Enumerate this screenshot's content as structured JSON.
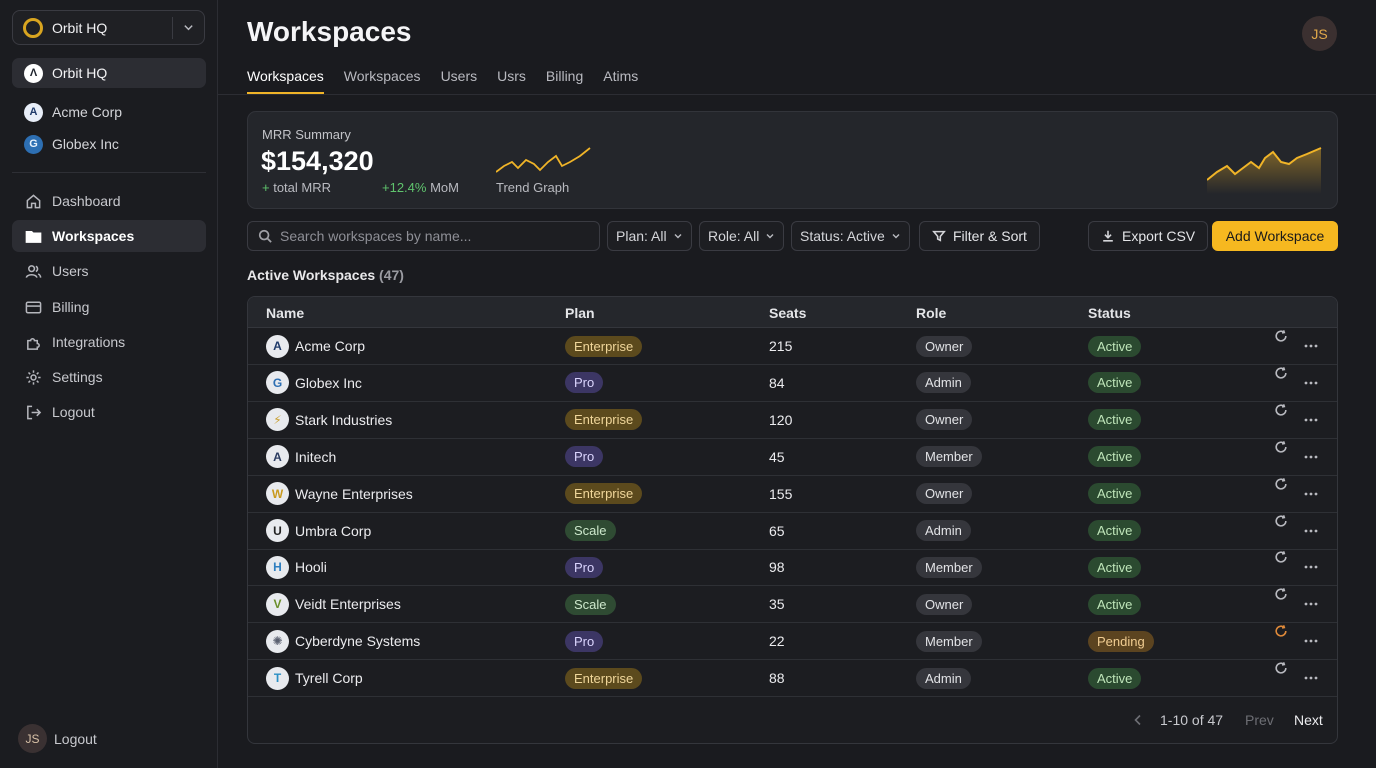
{
  "sidebar": {
    "switcher": {
      "name": "Orbit HQ"
    },
    "orgs": [
      {
        "label": "Orbit HQ",
        "logo_char": "Λ",
        "logo_bg": "#ffffff",
        "logo_fg": "#20252e"
      },
      {
        "label": "Acme Corp",
        "logo_char": "A",
        "logo_bg": "#e8eef8",
        "logo_fg": "#1f3a6a"
      },
      {
        "label": "Globex Inc",
        "logo_char": "G",
        "logo_bg": "#2d6fb3",
        "logo_fg": "#e8f1fb"
      }
    ],
    "nav": [
      {
        "label": "Dashboard",
        "icon": "home-icon"
      },
      {
        "label": "Workspaces",
        "icon": "folder-icon"
      },
      {
        "label": "Users",
        "icon": "users-icon"
      },
      {
        "label": "Billing",
        "icon": "credit-card-icon"
      },
      {
        "label": "Integrations",
        "icon": "puzzle-icon"
      },
      {
        "label": "Settings",
        "icon": "gear-icon"
      },
      {
        "label": "Logout",
        "icon": "logout-icon"
      }
    ],
    "user": {
      "initials": "JS",
      "label": "Logout"
    }
  },
  "header": {
    "title": "Workspaces",
    "avatar_initials": "JS",
    "tabs": [
      "Workspaces",
      "Workspaces",
      "Users",
      "Usrs",
      "Billing",
      "Atims"
    ]
  },
  "mrr": {
    "label": "MRR Summary",
    "value": "$154,320",
    "plus_glyph": "+",
    "sub_label": "total MRR",
    "mom_pct": "+12.4%",
    "mom_label": "MoM",
    "trend_label": "Trend Graph",
    "accent": "#f0b428"
  },
  "toolbar": {
    "search_placeholder": "Search workspaces by name...",
    "plan_filter": "Plan: All",
    "role_filter": "Role: All",
    "status_filter": "Status: Active",
    "filter_sort": "Filter & Sort",
    "export": "Export CSV",
    "add": "Add Workspace"
  },
  "section": {
    "title": "Active Workspaces",
    "count": "(47)"
  },
  "table": {
    "columns": [
      "Name",
      "Plan",
      "Seats",
      "Role",
      "Status"
    ],
    "rows": [
      {
        "name": "Acme Corp",
        "logo_char": "A",
        "logo_fg": "#1f3a6a",
        "plan": "Enterprise",
        "seats": "215",
        "role": "Owner",
        "status": "Active"
      },
      {
        "name": "Globex Inc",
        "logo_char": "G",
        "logo_fg": "#2d6fb3",
        "plan": "Pro",
        "seats": "84",
        "role": "Admin",
        "status": "Active"
      },
      {
        "name": "Stark Industries",
        "logo_char": "⚡",
        "logo_fg": "#c9a032",
        "plan": "Enterprise",
        "seats": "120",
        "role": "Owner",
        "status": "Active"
      },
      {
        "name": "Initech",
        "logo_char": "A",
        "logo_fg": "#2a3b60",
        "plan": "Pro",
        "seats": "45",
        "role": "Member",
        "status": "Active"
      },
      {
        "name": "Wayne Enterprises",
        "logo_char": "W",
        "logo_fg": "#c99a1e",
        "plan": "Enterprise",
        "seats": "155",
        "role": "Owner",
        "status": "Active"
      },
      {
        "name": "Umbra Corp",
        "logo_char": "U",
        "logo_fg": "#222222",
        "plan": "Scale",
        "seats": "65",
        "role": "Admin",
        "status": "Active"
      },
      {
        "name": "Hooli",
        "logo_char": "H",
        "logo_fg": "#2f7fc0",
        "plan": "Pro",
        "seats": "98",
        "role": "Member",
        "status": "Active"
      },
      {
        "name": "Veidt Enterprises",
        "logo_char": "V",
        "logo_fg": "#6b8f2a",
        "plan": "Scale",
        "seats": "35",
        "role": "Owner",
        "status": "Active"
      },
      {
        "name": "Cyberdyne Systems",
        "logo_char": "✺",
        "logo_fg": "#5a6070",
        "plan": "Pro",
        "seats": "22",
        "role": "Member",
        "status": "Pending"
      },
      {
        "name": "Tyrell Corp",
        "logo_char": "T",
        "logo_fg": "#2b8fc4",
        "plan": "Enterprise",
        "seats": "88",
        "role": "Admin",
        "status": "Active"
      }
    ]
  },
  "pagination": {
    "range": "1-10 of 47",
    "prev": "Prev",
    "next": "Next"
  }
}
